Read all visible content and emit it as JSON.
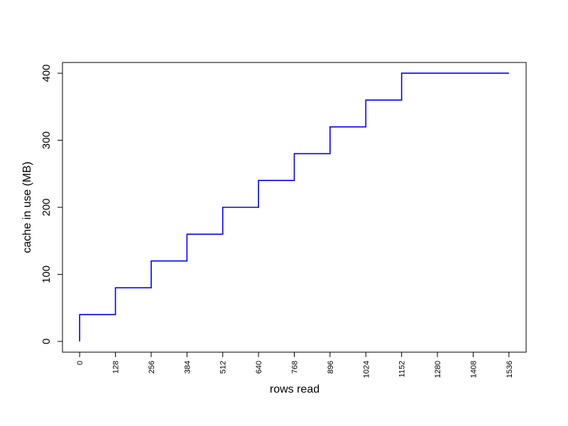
{
  "chart_data": {
    "type": "step",
    "x_label": "rows read",
    "y_label": "cache in use (MB)",
    "series": [
      {
        "color": "#0000ff",
        "x": [
          0,
          0,
          128,
          256,
          384,
          512,
          640,
          768,
          896,
          1024,
          1152,
          1536
        ],
        "values": [
          0,
          40,
          80,
          120,
          160,
          200,
          240,
          280,
          320,
          360,
          400,
          400
        ]
      }
    ],
    "xlim": [
      -61.44,
      1597.44
    ],
    "ylim": [
      -16,
      416
    ],
    "xticks": [
      0,
      128,
      256,
      384,
      512,
      640,
      768,
      896,
      1024,
      1152,
      1280,
      1408,
      1536
    ],
    "yticks": [
      0,
      100,
      200,
      300,
      400
    ]
  }
}
